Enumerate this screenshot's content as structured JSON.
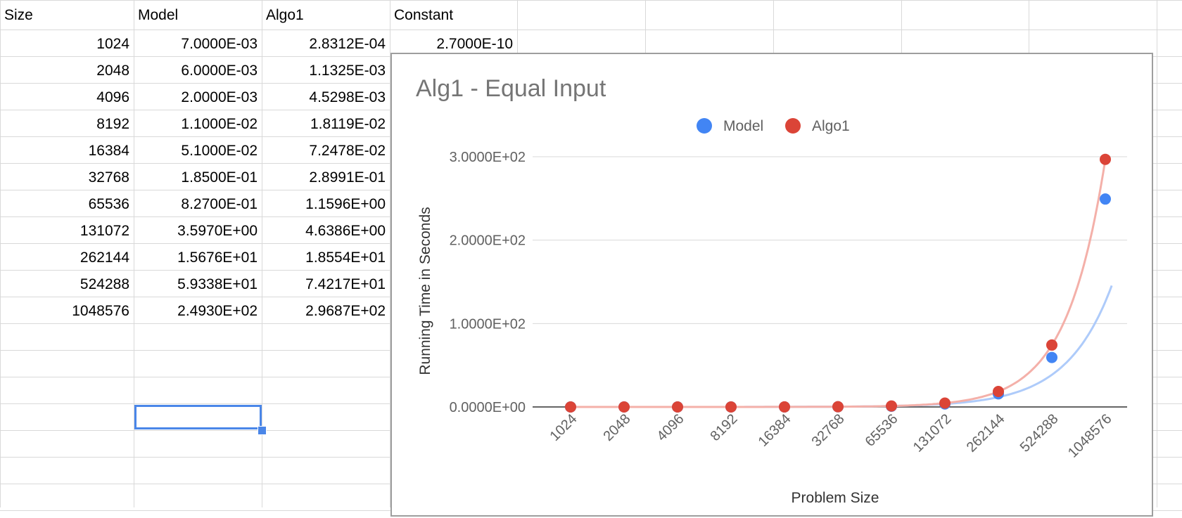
{
  "sheet": {
    "columns": [
      {
        "key": "size",
        "header": "Size"
      },
      {
        "key": "model",
        "header": "Model"
      },
      {
        "key": "algo1",
        "header": "Algo1"
      },
      {
        "key": "constant",
        "header": "Constant"
      }
    ],
    "rows": [
      {
        "size": "1024",
        "model": "7.0000E-03",
        "algo1": "2.8312E-04",
        "constant": "2.7000E-10"
      },
      {
        "size": "2048",
        "model": "6.0000E-03",
        "algo1": "1.1325E-03"
      },
      {
        "size": "4096",
        "model": "2.0000E-03",
        "algo1": "4.5298E-03"
      },
      {
        "size": "8192",
        "model": "1.1000E-02",
        "algo1": "1.8119E-02"
      },
      {
        "size": "16384",
        "model": "5.1000E-02",
        "algo1": "7.2478E-02"
      },
      {
        "size": "32768",
        "model": "1.8500E-01",
        "algo1": "2.8991E-01"
      },
      {
        "size": "65536",
        "model": "8.2700E-01",
        "algo1": "1.1596E+00"
      },
      {
        "size": "131072",
        "model": "3.5970E+00",
        "algo1": "4.6386E+00"
      },
      {
        "size": "262144",
        "model": "1.5676E+01",
        "algo1": "1.8554E+01"
      },
      {
        "size": "524288",
        "model": "5.9338E+01",
        "algo1": "7.4217E+01"
      },
      {
        "size": "1048576",
        "model": "2.4930E+02",
        "algo1": "2.9687E+02"
      }
    ],
    "colors": {
      "gridline": "#d9d9d9",
      "selection": "#4a86e8"
    }
  },
  "chart_data": {
    "type": "scatter",
    "title": "Alg1 - Equal Input",
    "xlabel": "Problem Size",
    "ylabel": "Running Time in Seconds",
    "categories": [
      "1024",
      "2048",
      "4096",
      "8192",
      "16384",
      "32768",
      "65536",
      "131072",
      "262144",
      "524288",
      "1048576"
    ],
    "series": [
      {
        "name": "Model",
        "color": "#4285f4",
        "trendline_color": "#aecbfa",
        "values": [
          0.007,
          0.006,
          0.002,
          0.011,
          0.051,
          0.185,
          0.827,
          3.597,
          15.676,
          59.338,
          249.3
        ]
      },
      {
        "name": "Algo1",
        "color": "#db4437",
        "trendline_color": "#f4b0a9",
        "values": [
          0.00028312,
          0.0011325,
          0.0045298,
          0.018119,
          0.072478,
          0.28991,
          1.1596,
          4.6386,
          18.554,
          74.217,
          296.87
        ]
      }
    ],
    "trendline": "exponential",
    "yticks": [
      0,
      100,
      200,
      300
    ],
    "ytick_labels": [
      "0.0000E+00",
      "1.0000E+02",
      "2.0000E+02",
      "3.0000E+02"
    ],
    "ylim": [
      0,
      300
    ],
    "legend_position": "top",
    "grid": true
  }
}
